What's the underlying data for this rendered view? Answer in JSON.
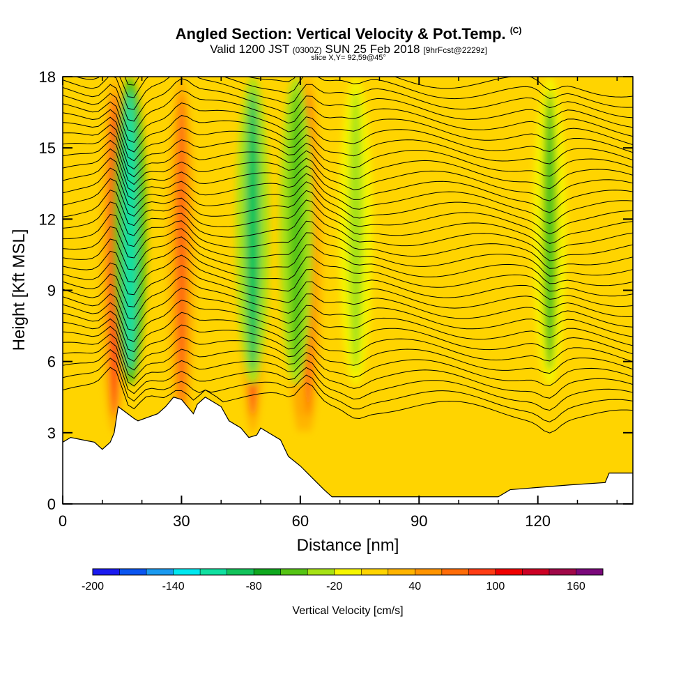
{
  "title": {
    "main": "Angled Section: Vertical Velocity & Pot.Temp.",
    "main_tag": "(C)",
    "valid_prefix": "Valid 1200 JST",
    "valid_utc": "(0300Z)",
    "valid_date": "SUN 25 Feb 2018",
    "forecast": "[9hrFcst@2229z]",
    "slice": "slice X,Y= 92,59@45°"
  },
  "colors": {
    "terrain": "#ffffff",
    "contour": "#000000",
    "background_field": "#ffd400"
  },
  "chart_data": {
    "type": "heatmap",
    "xlabel": "Distance [nm]",
    "ylabel": "Height [Kft MSL]",
    "xlim": [
      0,
      144
    ],
    "ylim": [
      0,
      18
    ],
    "x_ticks": [
      0,
      30,
      60,
      90,
      120
    ],
    "x_tick_labels": [
      "0",
      "30",
      "60",
      "90",
      "120"
    ],
    "y_ticks": [
      0,
      3,
      6,
      9,
      12,
      15,
      18
    ],
    "y_tick_labels": [
      "0",
      "3",
      "6",
      "9",
      "12",
      "15",
      "18"
    ],
    "terrain_profile": [
      {
        "x": 0,
        "h": 2.6
      },
      {
        "x": 2,
        "h": 2.8
      },
      {
        "x": 8,
        "h": 2.6
      },
      {
        "x": 10,
        "h": 2.3
      },
      {
        "x": 12,
        "h": 2.6
      },
      {
        "x": 13,
        "h": 3.0
      },
      {
        "x": 14,
        "h": 4.1
      },
      {
        "x": 18,
        "h": 3.6
      },
      {
        "x": 19,
        "h": 3.5
      },
      {
        "x": 24,
        "h": 3.8
      },
      {
        "x": 26,
        "h": 4.1
      },
      {
        "x": 28,
        "h": 4.5
      },
      {
        "x": 30,
        "h": 4.4
      },
      {
        "x": 33,
        "h": 3.8
      },
      {
        "x": 34,
        "h": 4.2
      },
      {
        "x": 36,
        "h": 4.5
      },
      {
        "x": 40,
        "h": 4.1
      },
      {
        "x": 42,
        "h": 3.5
      },
      {
        "x": 45,
        "h": 3.2
      },
      {
        "x": 47,
        "h": 2.8
      },
      {
        "x": 49,
        "h": 2.9
      },
      {
        "x": 50,
        "h": 3.2
      },
      {
        "x": 52,
        "h": 3.0
      },
      {
        "x": 55,
        "h": 2.7
      },
      {
        "x": 57,
        "h": 2.0
      },
      {
        "x": 60,
        "h": 1.6
      },
      {
        "x": 63,
        "h": 1.1
      },
      {
        "x": 66,
        "h": 0.6
      },
      {
        "x": 68,
        "h": 0.3
      },
      {
        "x": 110,
        "h": 0.3
      },
      {
        "x": 113,
        "h": 0.6
      },
      {
        "x": 128,
        "h": 0.8
      },
      {
        "x": 137,
        "h": 0.9
      },
      {
        "x": 138,
        "h": 1.3
      },
      {
        "x": 144,
        "h": 1.3
      }
    ],
    "colorbar": {
      "title": "Vertical Velocity [cm/s]",
      "min": -200,
      "max": 180,
      "step": 20,
      "tick_values": [
        -200,
        -140,
        -80,
        -20,
        40,
        100,
        160
      ],
      "tick_labels": [
        "-200",
        "-140",
        "-80",
        "-20",
        "40",
        "100",
        "160"
      ],
      "colors": [
        "#1a1af0",
        "#0a55f0",
        "#1a9af0",
        "#00e8f0",
        "#10e0a0",
        "#12c35a",
        "#0fa81e",
        "#55c414",
        "#a6e214",
        "#f6f600",
        "#ffd400",
        "#ffb400",
        "#ff9400",
        "#ff6c08",
        "#ff3c14",
        "#f00000",
        "#cc0024",
        "#a00848",
        "#7a087a"
      ]
    },
    "updrafts_cm_s": [
      {
        "x": 13,
        "value": 95
      },
      {
        "x": 30,
        "value": 60
      },
      {
        "x": 48,
        "value": 90
      },
      {
        "x": 60,
        "value": 50
      },
      {
        "x": 62,
        "value": 60
      }
    ],
    "downdrafts_cm_s": [
      {
        "x": 17,
        "value": -110
      },
      {
        "x": 48,
        "value": -90
      },
      {
        "x": 59,
        "value": -60
      },
      {
        "x": 74,
        "value": -30
      },
      {
        "x": 123,
        "value": -50
      }
    ]
  }
}
